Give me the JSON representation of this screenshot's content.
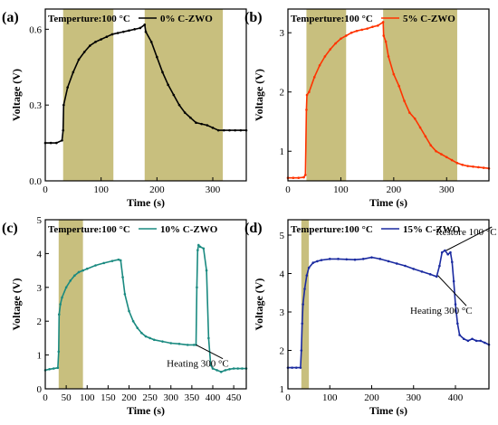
{
  "chart_data": [
    {
      "type": "line",
      "panel_label": "(a)",
      "annotation": "Temperture:100 °C",
      "legend": "0% C-ZWO",
      "legend_placement": "top-right",
      "color": "#000000",
      "xlabel": "Time (s)",
      "ylabel": "Voltage (V)",
      "xlim": [
        0,
        360
      ],
      "ylim": [
        0,
        0.68
      ],
      "xticks": [
        0,
        100,
        200,
        300
      ],
      "yticks": [
        0.0,
        0.3,
        0.6
      ],
      "ytick_labels": [
        "0.0",
        "0.3",
        "0.6"
      ],
      "shaded": [
        [
          32,
          122
        ],
        [
          178,
          318
        ]
      ],
      "x": [
        0,
        10,
        20,
        30,
        32,
        33,
        40,
        50,
        60,
        70,
        80,
        90,
        100,
        110,
        120,
        130,
        140,
        150,
        160,
        170,
        178,
        180,
        190,
        200,
        210,
        220,
        230,
        240,
        250,
        260,
        270,
        280,
        290,
        300,
        310,
        320,
        330,
        340,
        350,
        360
      ],
      "y": [
        0.15,
        0.15,
        0.15,
        0.16,
        0.2,
        0.3,
        0.37,
        0.43,
        0.48,
        0.51,
        0.535,
        0.55,
        0.56,
        0.57,
        0.58,
        0.585,
        0.59,
        0.595,
        0.6,
        0.605,
        0.618,
        0.59,
        0.55,
        0.49,
        0.43,
        0.38,
        0.34,
        0.3,
        0.27,
        0.25,
        0.23,
        0.225,
        0.22,
        0.21,
        0.2,
        0.2,
        0.2,
        0.2,
        0.2,
        0.2
      ],
      "annotations": []
    },
    {
      "type": "line",
      "panel_label": "(b)",
      "annotation": "Temperture:100 °C",
      "legend": "5% C-ZWO",
      "legend_placement": "top-right",
      "color": "#ff3300",
      "xlabel": "Time (s)",
      "ylabel": "Voltage (V)",
      "xlim": [
        0,
        380
      ],
      "ylim": [
        0.5,
        3.4
      ],
      "xticks": [
        0,
        100,
        200,
        300
      ],
      "yticks": [
        1,
        2,
        3
      ],
      "ytick_labels": [
        "1",
        "2",
        "3"
      ],
      "shaded": [
        [
          35,
          110
        ],
        [
          180,
          320
        ]
      ],
      "x": [
        0,
        10,
        20,
        30,
        33,
        35,
        36,
        40,
        50,
        60,
        70,
        80,
        90,
        100,
        110,
        120,
        130,
        140,
        150,
        160,
        170,
        180,
        181,
        185,
        190,
        200,
        210,
        220,
        230,
        240,
        250,
        260,
        270,
        280,
        290,
        300,
        310,
        320,
        330,
        340,
        350,
        360,
        370,
        380
      ],
      "y": [
        0.55,
        0.55,
        0.55,
        0.56,
        0.6,
        1.7,
        1.95,
        2.0,
        2.25,
        2.45,
        2.6,
        2.72,
        2.82,
        2.9,
        2.95,
        3.0,
        3.03,
        3.05,
        3.07,
        3.1,
        3.12,
        3.18,
        2.95,
        2.85,
        2.6,
        2.3,
        2.1,
        1.85,
        1.65,
        1.55,
        1.4,
        1.25,
        1.1,
        1.0,
        0.95,
        0.9,
        0.85,
        0.8,
        0.77,
        0.75,
        0.74,
        0.73,
        0.72,
        0.71
      ],
      "annotations": []
    },
    {
      "type": "line",
      "panel_label": "(c)",
      "annotation": "Temperture:100 °C",
      "legend": "10% C-ZWO",
      "legend_placement": "top-right",
      "color": "#1a8a80",
      "xlabel": "Time (s)",
      "ylabel": "Voltage (V)",
      "xlim": [
        0,
        480
      ],
      "ylim": [
        0,
        5
      ],
      "xticks": [
        0,
        50,
        100,
        150,
        200,
        250,
        300,
        350,
        400,
        450
      ],
      "yticks": [
        0,
        1,
        2,
        3,
        4,
        5
      ],
      "ytick_labels": [
        "0",
        "1",
        "2",
        "3",
        "4",
        "5"
      ],
      "shaded": [
        [
          32,
          90
        ]
      ],
      "x": [
        0,
        10,
        20,
        30,
        32,
        33,
        36,
        40,
        50,
        60,
        70,
        80,
        90,
        100,
        120,
        140,
        160,
        175,
        180,
        185,
        190,
        200,
        210,
        220,
        230,
        240,
        250,
        260,
        280,
        300,
        320,
        340,
        355,
        360,
        362,
        364,
        366,
        370,
        378,
        385,
        390,
        395,
        400,
        410,
        420,
        430,
        440,
        450,
        460,
        470,
        480
      ],
      "y": [
        0.55,
        0.58,
        0.6,
        0.62,
        1.1,
        2.2,
        2.5,
        2.7,
        3.0,
        3.2,
        3.35,
        3.45,
        3.5,
        3.55,
        3.65,
        3.72,
        3.78,
        3.82,
        3.8,
        3.3,
        2.8,
        2.3,
        2.0,
        1.8,
        1.65,
        1.55,
        1.5,
        1.45,
        1.4,
        1.35,
        1.33,
        1.3,
        1.3,
        1.3,
        3.0,
        4.1,
        4.25,
        4.2,
        4.15,
        3.5,
        1.5,
        0.7,
        0.6,
        0.55,
        0.5,
        0.55,
        0.58,
        0.6,
        0.6,
        0.6,
        0.6
      ],
      "annotations": [
        {
          "text": "Heating 300 °C",
          "label_x": 290,
          "label_y": 0.65,
          "arrow_to": [
            360,
            1.3
          ]
        }
      ]
    },
    {
      "type": "line",
      "panel_label": "(d)",
      "annotation": "Temperture:100 °C",
      "legend": "15% C-ZWO",
      "legend_placement": "top-right",
      "color": "#1a2aa0",
      "xlabel": "Time (s)",
      "ylabel": "Voltage (V)",
      "xlim": [
        0,
        480
      ],
      "ylim": [
        1,
        5.4
      ],
      "xticks": [
        0,
        100,
        200,
        300,
        400
      ],
      "yticks": [
        1,
        2,
        3,
        4,
        5
      ],
      "ytick_labels": [
        "1",
        "2",
        "3",
        "4",
        "5"
      ],
      "shaded": [
        [
          32,
          50
        ]
      ],
      "x": [
        0,
        10,
        20,
        30,
        32,
        34,
        36,
        40,
        45,
        50,
        60,
        70,
        80,
        100,
        120,
        140,
        160,
        180,
        200,
        220,
        240,
        260,
        280,
        300,
        320,
        340,
        355,
        362,
        368,
        375,
        382,
        388,
        392,
        396,
        400,
        405,
        410,
        420,
        430,
        440,
        450,
        460,
        470,
        480
      ],
      "y": [
        1.55,
        1.55,
        1.55,
        1.55,
        2.0,
        2.7,
        3.2,
        3.6,
        3.95,
        4.15,
        4.28,
        4.32,
        4.35,
        4.38,
        4.38,
        4.37,
        4.36,
        4.38,
        4.42,
        4.38,
        4.32,
        4.26,
        4.2,
        4.12,
        4.05,
        3.98,
        3.92,
        4.2,
        4.55,
        4.6,
        4.5,
        4.55,
        4.3,
        3.8,
        3.2,
        2.7,
        2.4,
        2.3,
        2.25,
        2.3,
        2.25,
        2.25,
        2.2,
        2.15
      ],
      "annotations": [
        {
          "text": "Heating 300 °C",
          "label_x": 292,
          "label_y": 2.95,
          "arrow_to": [
            358,
            3.95
          ]
        },
        {
          "text": "Restore 100 °C",
          "label_x": 353,
          "label_y": 5.0,
          "arrow_to": [
            378,
            4.6
          ]
        }
      ]
    }
  ]
}
